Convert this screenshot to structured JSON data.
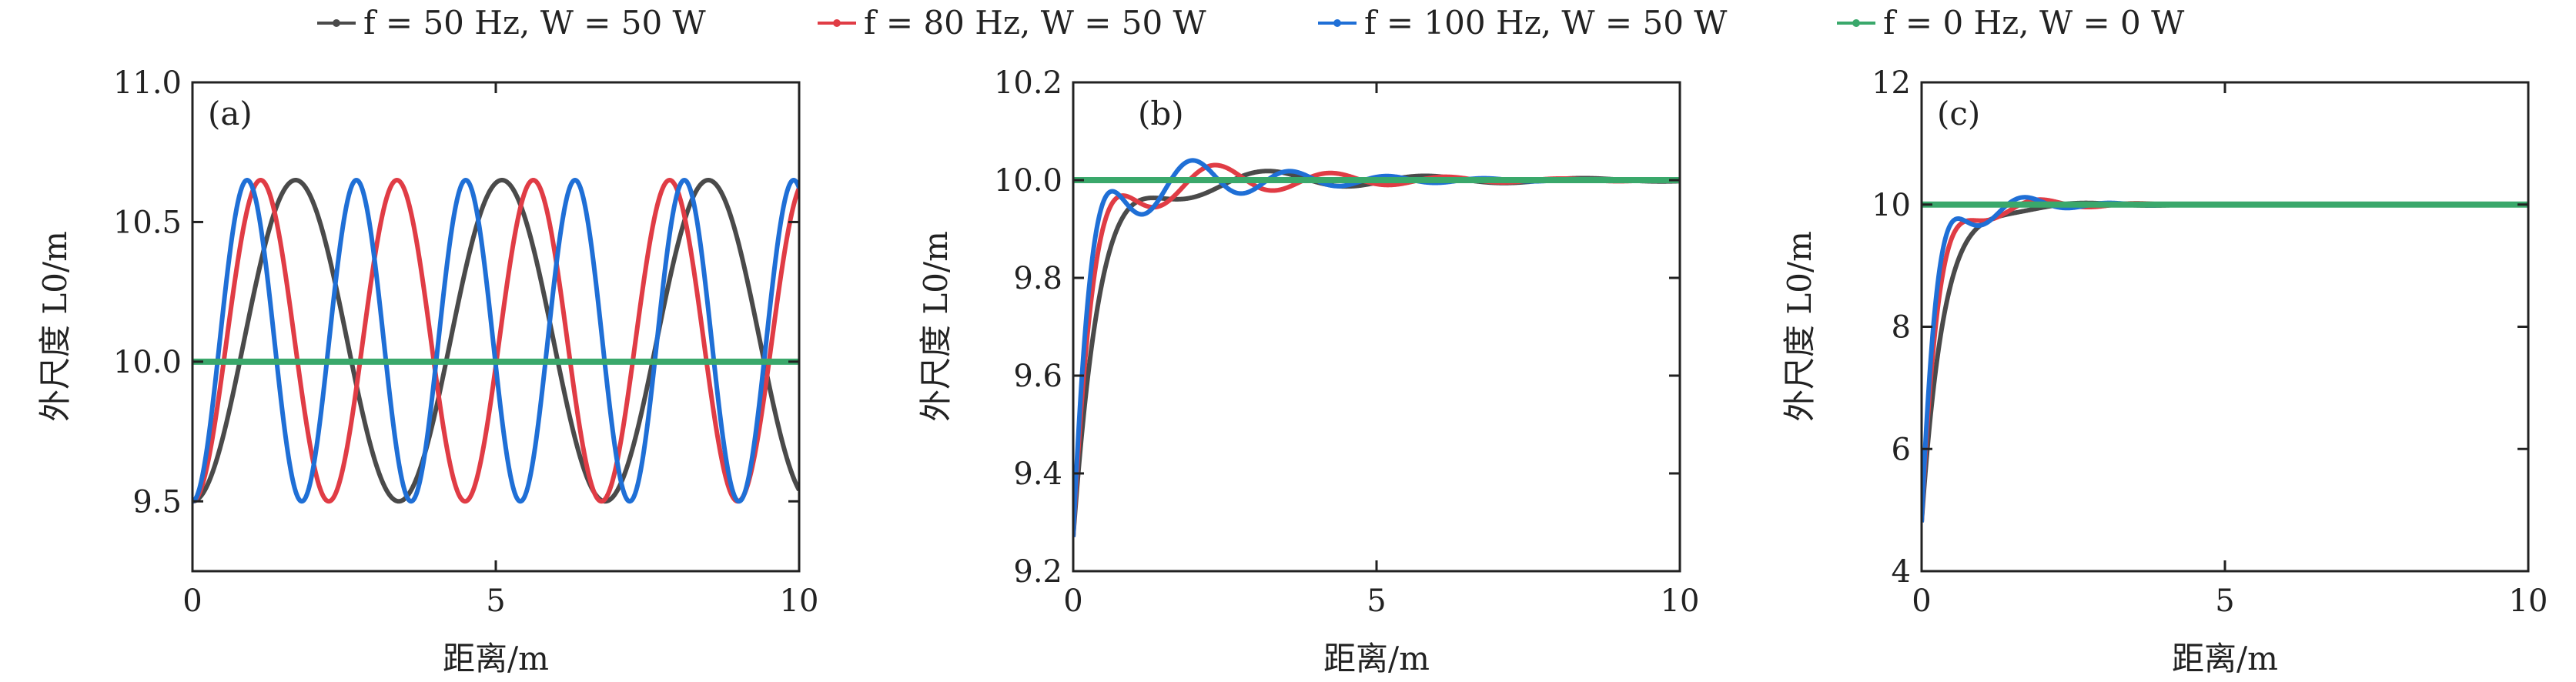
{
  "legend": [
    {
      "label": "f = 50 Hz, W = 50 W",
      "color": "#4a4a4a"
    },
    {
      "label": "f = 80 Hz, W = 50 W",
      "color": "#e03c45"
    },
    {
      "label": "f = 100 Hz, W = 50 W",
      "color": "#1f6fd6"
    },
    {
      "label": "f = 0 Hz, W = 0 W",
      "color": "#3aa86b"
    }
  ],
  "chart_data": [
    {
      "type": "line",
      "tag": "(a)",
      "xlabel": "距离/m",
      "ylabel": "外尺度 L0/m",
      "xlim": [
        0,
        10
      ],
      "ylim": [
        9.25,
        11.0
      ],
      "xticks": [
        0,
        5,
        10
      ],
      "yticks": [
        9.5,
        10.0,
        10.5,
        11.0
      ],
      "ytick_labels": [
        "9.5",
        "10.0",
        "10.5",
        "11.0"
      ],
      "series": [
        {
          "name": "f = 50 Hz, W = 50 W",
          "model": "oscillation",
          "mean": 10.075,
          "amplitude": 0.575,
          "frequency": 0.294
        },
        {
          "name": "f = 80 Hz, W = 50 W",
          "model": "oscillation",
          "mean": 10.075,
          "amplitude": 0.575,
          "frequency": 0.445
        },
        {
          "name": "f = 100 Hz, W = 50 W",
          "model": "oscillation",
          "mean": 10.075,
          "amplitude": 0.575,
          "frequency": 0.555
        },
        {
          "name": "f = 0 Hz, W = 0 W",
          "model": "constant",
          "value": 10.0
        }
      ]
    },
    {
      "type": "line",
      "tag": "(b)",
      "xlabel": "距离/m",
      "ylabel": "外尺度 L0/m",
      "xlim": [
        0,
        10
      ],
      "ylim": [
        9.2,
        10.2
      ],
      "xticks": [
        0,
        5,
        10
      ],
      "yticks": [
        9.2,
        9.4,
        9.6,
        9.8,
        10.0,
        10.2
      ],
      "ytick_labels": [
        "9.2",
        "9.4",
        "9.6",
        "9.8",
        "10.0",
        "10.2"
      ],
      "series": [
        {
          "name": "f = 50 Hz, W = 50 W",
          "model": "damped",
          "start": 9.27,
          "final": 10.0,
          "overshoot": 0.05,
          "peak_x": 1.3,
          "period": 2.6,
          "decay": 0.3
        },
        {
          "name": "f = 80 Hz, W = 50 W",
          "model": "damped",
          "start": 9.27,
          "final": 10.0,
          "overshoot": 0.08,
          "peak_x": 0.95,
          "period": 1.9,
          "decay": 0.4
        },
        {
          "name": "f = 100 Hz, W = 50 W",
          "model": "damped",
          "start": 9.27,
          "final": 10.0,
          "overshoot": 0.11,
          "peak_x": 0.8,
          "period": 1.6,
          "decay": 0.5
        },
        {
          "name": "f = 0 Hz, W = 0 W",
          "model": "constant",
          "value": 10.0
        }
      ]
    },
    {
      "type": "line",
      "tag": "(c)",
      "xlabel": "距离/m",
      "ylabel": "外尺度 L0/m",
      "xlim": [
        0,
        10
      ],
      "ylim": [
        4,
        12
      ],
      "xticks": [
        0,
        5,
        10
      ],
      "yticks": [
        4,
        6,
        8,
        10,
        12
      ],
      "ytick_labels": [
        "4",
        "6",
        "8",
        "10",
        "12"
      ],
      "series": [
        {
          "name": "f = 50 Hz, W = 50 W",
          "model": "damped",
          "start": 4.8,
          "final": 10.0,
          "overshoot": 0.15,
          "peak_x": 1.1,
          "period": 2.2,
          "decay": 0.6
        },
        {
          "name": "f = 80 Hz, W = 50 W",
          "model": "damped",
          "start": 4.8,
          "final": 10.0,
          "overshoot": 0.5,
          "peak_x": 0.8,
          "period": 1.6,
          "decay": 0.9
        },
        {
          "name": "f = 100 Hz, W = 50 W",
          "model": "damped",
          "start": 4.8,
          "final": 10.0,
          "overshoot": 0.82,
          "peak_x": 0.7,
          "period": 1.4,
          "decay": 1.1
        },
        {
          "name": "f = 0 Hz, W = 0 W",
          "model": "constant",
          "value": 10.0
        }
      ]
    }
  ]
}
